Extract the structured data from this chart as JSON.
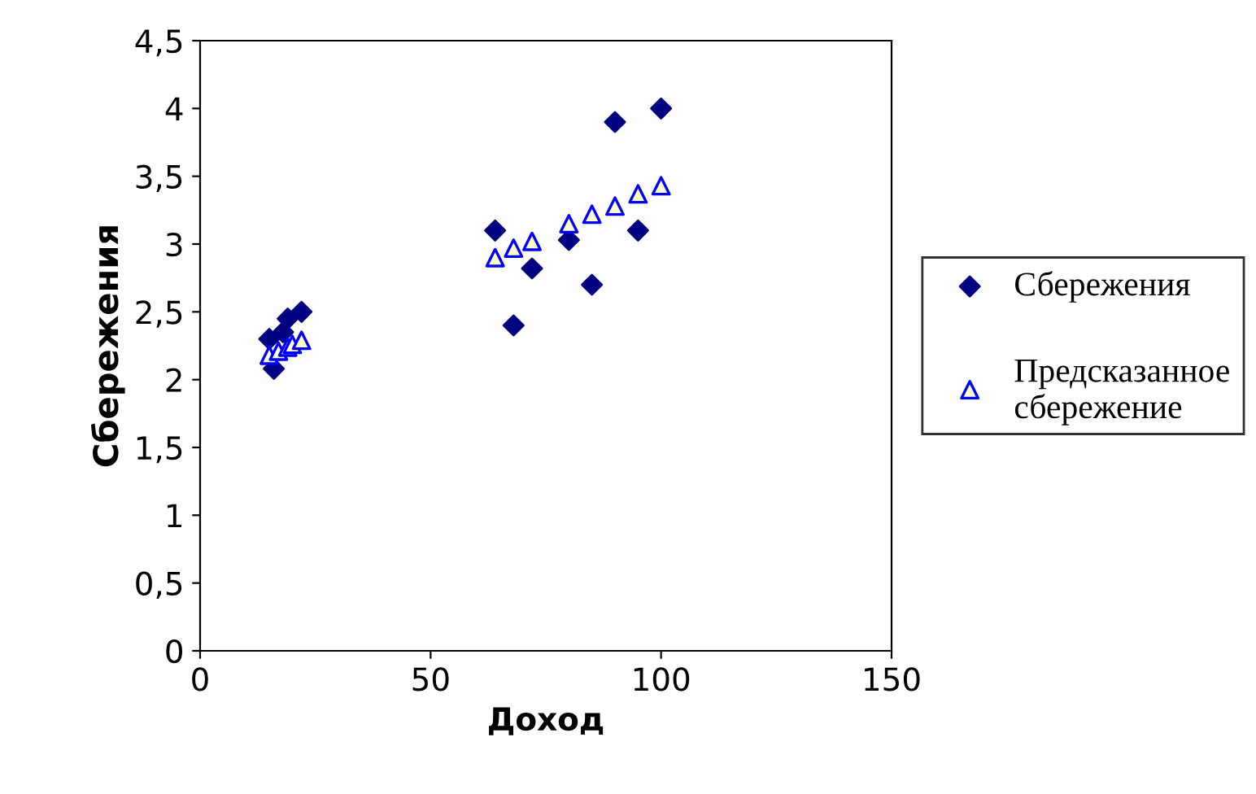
{
  "chart_data": {
    "type": "scatter",
    "xlabel": "Доход",
    "ylabel": "Сбережения",
    "xlim": [
      0,
      150
    ],
    "ylim": [
      0,
      4.5
    ],
    "xticks": [
      0,
      50,
      100,
      150
    ],
    "yticks": [
      {
        "value": 0,
        "label": "0"
      },
      {
        "value": 0.5,
        "label": "0,5"
      },
      {
        "value": 1,
        "label": "1"
      },
      {
        "value": 1.5,
        "label": "1,5"
      },
      {
        "value": 2,
        "label": "2"
      },
      {
        "value": 2.5,
        "label": "2,5"
      },
      {
        "value": 3,
        "label": "3"
      },
      {
        "value": 3.5,
        "label": "3,5"
      },
      {
        "value": 4,
        "label": "4"
      },
      {
        "value": 4.5,
        "label": "4,5"
      }
    ],
    "grid": false,
    "legend": "right",
    "series": [
      {
        "name": "Сбережения",
        "color": "#000080",
        "marker": "diamond",
        "x": [
          15,
          16,
          17,
          18,
          19,
          20,
          22,
          64,
          68,
          72,
          80,
          85,
          90,
          95,
          100
        ],
        "values": [
          2.3,
          2.08,
          null,
          2.35,
          2.45,
          null,
          2.5,
          3.1,
          2.4,
          2.82,
          3.03,
          2.7,
          3.9,
          3.1,
          4.0
        ]
      },
      {
        "name": "Предсказанное сбережение",
        "color": "#0000ff",
        "marker": "triangle",
        "x": [
          15,
          16,
          17,
          18,
          19,
          20,
          22,
          64,
          68,
          72,
          80,
          85,
          90,
          95,
          100
        ],
        "values": [
          2.18,
          null,
          2.21,
          null,
          2.24,
          2.26,
          2.29,
          2.9,
          2.97,
          3.02,
          3.15,
          3.22,
          3.28,
          3.37,
          3.43
        ]
      }
    ]
  }
}
